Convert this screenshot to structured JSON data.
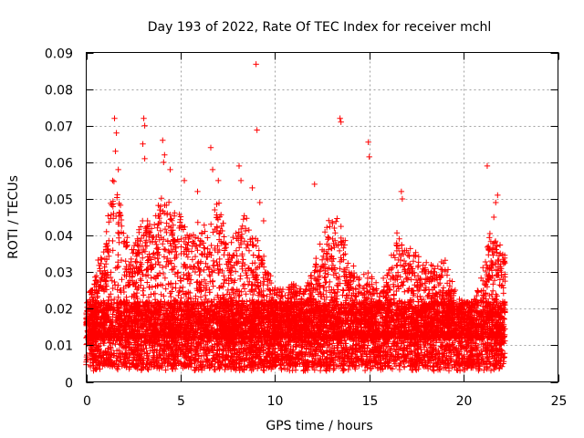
{
  "chart_data": {
    "type": "scatter",
    "title": "Day 193 of 2022, Rate Of TEC Index for receiver mchl",
    "xlabel": "GPS time / hours",
    "ylabel": "ROTI / TECUs",
    "xlim": [
      0,
      25
    ],
    "ylim": [
      0,
      0.09
    ],
    "x_ticks": [
      "0",
      "5",
      "10",
      "15",
      "20",
      "25"
    ],
    "y_ticks": [
      "0",
      "0.01",
      "0.02",
      "0.03",
      "0.04",
      "0.05",
      "0.06",
      "0.07",
      "0.08",
      "0.09"
    ],
    "grid": true,
    "marker": "+",
    "color": "#ff0000",
    "data_x_range": [
      0,
      22.2
    ],
    "background_band": {
      "description": "dense band of ROTI values across the full time span",
      "y_range": [
        0.004,
        0.022
      ]
    },
    "envelope": [
      {
        "x": 0.0,
        "y": 0.02
      },
      {
        "x": 0.5,
        "y": 0.03
      },
      {
        "x": 1.0,
        "y": 0.038
      },
      {
        "x": 1.5,
        "y": 0.058
      },
      {
        "x": 2.0,
        "y": 0.04
      },
      {
        "x": 2.5,
        "y": 0.035
      },
      {
        "x": 3.0,
        "y": 0.045
      },
      {
        "x": 3.5,
        "y": 0.04
      },
      {
        "x": 4.0,
        "y": 0.05
      },
      {
        "x": 4.5,
        "y": 0.047
      },
      {
        "x": 5.0,
        "y": 0.045
      },
      {
        "x": 5.5,
        "y": 0.04
      },
      {
        "x": 6.0,
        "y": 0.042
      },
      {
        "x": 6.5,
        "y": 0.04
      },
      {
        "x": 7.0,
        "y": 0.05
      },
      {
        "x": 7.5,
        "y": 0.035
      },
      {
        "x": 8.0,
        "y": 0.04
      },
      {
        "x": 8.5,
        "y": 0.045
      },
      {
        "x": 9.0,
        "y": 0.038
      },
      {
        "x": 9.5,
        "y": 0.032
      },
      {
        "x": 10.0,
        "y": 0.025
      },
      {
        "x": 10.5,
        "y": 0.024
      },
      {
        "x": 11.0,
        "y": 0.026
      },
      {
        "x": 11.5,
        "y": 0.025
      },
      {
        "x": 12.0,
        "y": 0.03
      },
      {
        "x": 12.5,
        "y": 0.038
      },
      {
        "x": 13.0,
        "y": 0.045
      },
      {
        "x": 13.5,
        "y": 0.042
      },
      {
        "x": 14.0,
        "y": 0.032
      },
      {
        "x": 14.5,
        "y": 0.028
      },
      {
        "x": 15.0,
        "y": 0.03
      },
      {
        "x": 15.5,
        "y": 0.025
      },
      {
        "x": 16.0,
        "y": 0.03
      },
      {
        "x": 16.5,
        "y": 0.04
      },
      {
        "x": 17.0,
        "y": 0.035
      },
      {
        "x": 17.5,
        "y": 0.035
      },
      {
        "x": 18.0,
        "y": 0.033
      },
      {
        "x": 18.5,
        "y": 0.03
      },
      {
        "x": 19.0,
        "y": 0.032
      },
      {
        "x": 19.5,
        "y": 0.025
      },
      {
        "x": 20.0,
        "y": 0.022
      },
      {
        "x": 20.5,
        "y": 0.022
      },
      {
        "x": 21.0,
        "y": 0.03
      },
      {
        "x": 21.5,
        "y": 0.042
      },
      {
        "x": 22.0,
        "y": 0.035
      }
    ],
    "outliers": [
      {
        "x": 1.5,
        "y": 0.072
      },
      {
        "x": 1.6,
        "y": 0.068
      },
      {
        "x": 1.55,
        "y": 0.063
      },
      {
        "x": 1.7,
        "y": 0.058
      },
      {
        "x": 3.05,
        "y": 0.072
      },
      {
        "x": 3.1,
        "y": 0.07
      },
      {
        "x": 3.0,
        "y": 0.065
      },
      {
        "x": 3.1,
        "y": 0.061
      },
      {
        "x": 4.05,
        "y": 0.066
      },
      {
        "x": 4.15,
        "y": 0.062
      },
      {
        "x": 4.1,
        "y": 0.06
      },
      {
        "x": 5.2,
        "y": 0.055
      },
      {
        "x": 6.6,
        "y": 0.064
      },
      {
        "x": 6.7,
        "y": 0.058
      },
      {
        "x": 7.0,
        "y": 0.055
      },
      {
        "x": 8.1,
        "y": 0.059
      },
      {
        "x": 8.2,
        "y": 0.055
      },
      {
        "x": 8.8,
        "y": 0.053
      },
      {
        "x": 9.0,
        "y": 0.0868
      },
      {
        "x": 9.05,
        "y": 0.0688
      },
      {
        "x": 9.2,
        "y": 0.049
      },
      {
        "x": 9.4,
        "y": 0.044
      },
      {
        "x": 12.1,
        "y": 0.054
      },
      {
        "x": 13.45,
        "y": 0.072
      },
      {
        "x": 13.5,
        "y": 0.071
      },
      {
        "x": 14.95,
        "y": 0.0655
      },
      {
        "x": 15.0,
        "y": 0.0615
      },
      {
        "x": 16.7,
        "y": 0.052
      },
      {
        "x": 16.75,
        "y": 0.05
      },
      {
        "x": 21.25,
        "y": 0.059
      },
      {
        "x": 21.8,
        "y": 0.051
      },
      {
        "x": 21.7,
        "y": 0.049
      },
      {
        "x": 21.6,
        "y": 0.045
      },
      {
        "x": 4.45,
        "y": 0.058
      },
      {
        "x": 5.9,
        "y": 0.052
      },
      {
        "x": 1.4,
        "y": 0.055
      }
    ]
  }
}
